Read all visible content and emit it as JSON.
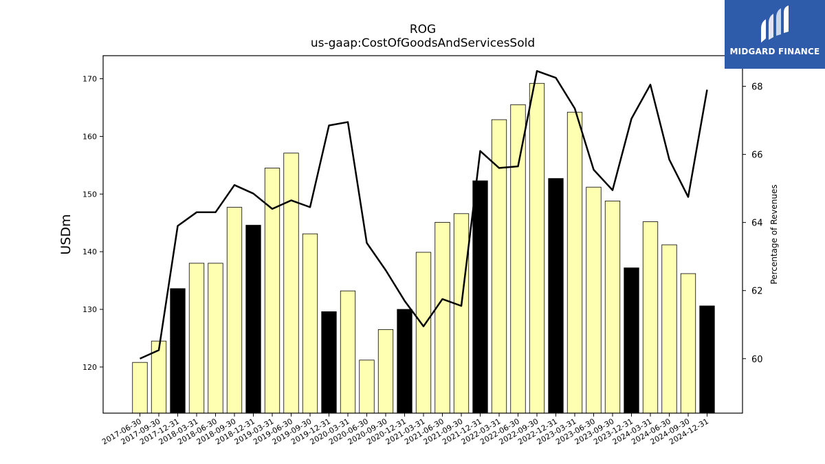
{
  "title": "ROG",
  "subtitle": "us-gaap:CostOfGoodsAndServicesSold",
  "logo": {
    "text": "MIDGARD FINANCE",
    "color": "#2f5bab"
  },
  "chart_data": {
    "type": "bar",
    "categories": [
      "2017-06-30",
      "2017-09-30",
      "2017-12-31",
      "2018-03-31",
      "2018-06-30",
      "2018-09-30",
      "2018-12-31",
      "2019-03-31",
      "2019-06-30",
      "2019-09-30",
      "2019-12-31",
      "2020-03-31",
      "2020-06-30",
      "2020-09-30",
      "2020-12-31",
      "2021-03-31",
      "2021-06-30",
      "2021-09-30",
      "2021-12-31",
      "2022-03-31",
      "2022-06-30",
      "2022-09-30",
      "2022-12-31",
      "2023-03-31",
      "2023-06-30",
      "2023-09-30",
      "2023-12-31",
      "2024-03-31",
      "2024-06-30",
      "2024-09-30",
      "2024-12-31"
    ],
    "series": [
      {
        "axis": "left",
        "type": "bar",
        "values": [
          120.8,
          124.5,
          133.6,
          138.0,
          138.0,
          147.7,
          144.6,
          154.5,
          157.1,
          143.1,
          129.6,
          133.2,
          121.2,
          126.5,
          130.0,
          139.9,
          145.1,
          146.6,
          152.3,
          162.9,
          165.5,
          169.2,
          152.7,
          164.2,
          151.2,
          148.8,
          137.2,
          145.2,
          141.2,
          136.2,
          130.6
        ],
        "colors": [
          "#ffffb2",
          "#ffffb2",
          "#000000",
          "#ffffb2",
          "#ffffb2",
          "#ffffb2",
          "#000000",
          "#ffffb2",
          "#ffffb2",
          "#ffffb2",
          "#000000",
          "#ffffb2",
          "#ffffb2",
          "#ffffb2",
          "#000000",
          "#ffffb2",
          "#ffffb2",
          "#ffffb2",
          "#000000",
          "#ffffb2",
          "#ffffb2",
          "#ffffb2",
          "#000000",
          "#ffffb2",
          "#ffffb2",
          "#ffffb2",
          "#000000",
          "#ffffb2",
          "#ffffb2",
          "#ffffb2",
          "#000000"
        ]
      },
      {
        "axis": "right",
        "type": "line",
        "color": "#000000",
        "values": [
          60.0,
          60.25,
          63.9,
          64.3,
          64.3,
          65.1,
          64.85,
          64.4,
          64.65,
          64.45,
          66.85,
          66.95,
          63.4,
          62.6,
          61.7,
          60.95,
          61.75,
          61.55,
          66.1,
          65.6,
          65.65,
          68.45,
          68.25,
          67.35,
          65.55,
          64.95,
          67.05,
          68.05,
          65.85,
          64.75,
          67.9
        ]
      }
    ],
    "ylabel": "USDm",
    "y2label": "Percentage of Revenues",
    "ylim": [
      112,
      174
    ],
    "y2lim": [
      58.4,
      68.9
    ],
    "yticks": [
      120,
      130,
      140,
      150,
      160,
      170
    ],
    "y2ticks": [
      60,
      62,
      64,
      66,
      68
    ],
    "grid": false
  }
}
